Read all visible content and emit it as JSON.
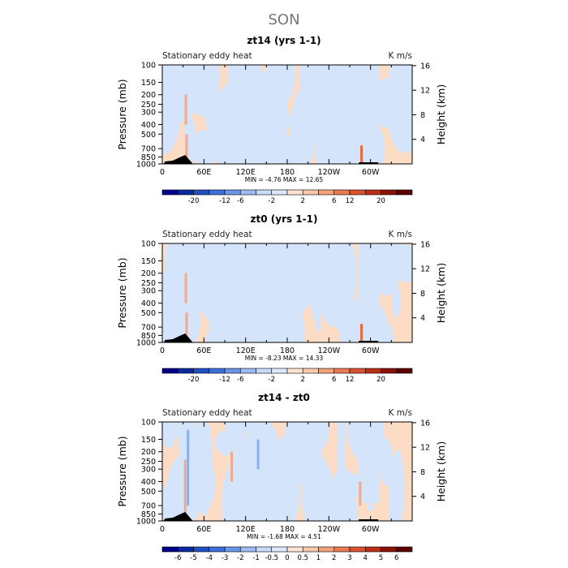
{
  "figure": {
    "title": "SON"
  },
  "colors": {
    "pos_light": "#fddcc6",
    "neg_light": "#d4e5fb",
    "neg_mid": "#8ab0ee",
    "pos_mid": "#f2a88a",
    "pos_strong": "#e56a3f",
    "land": "#000000"
  },
  "chart_data": [
    {
      "type": "heatmap",
      "title": "zt14 (yrs 1-1)",
      "left_label": "Stationary eddy heat",
      "right_label": "K m/s",
      "ylabel": "Pressure (mb)",
      "ylabel_right": "Height (km)",
      "x_ticks": [
        "0",
        "60E",
        "120E",
        "180",
        "120W",
        "60W"
      ],
      "y_ticks": [
        "100",
        "150",
        "200",
        "250",
        "300",
        "400",
        "500",
        "700",
        "850",
        "1000"
      ],
      "y_right_ticks": [
        "4",
        "8",
        "12",
        "16"
      ],
      "stats": {
        "min_label": "MIN =",
        "min": "-4.76",
        "max_label": "MAX =",
        "max": "12.65"
      },
      "colorbar": {
        "ticks": [
          "-20",
          "-12",
          "-6",
          "-2",
          "2",
          "6",
          "12",
          "20"
        ],
        "colors": [
          "#00008b",
          "#0a2a9e",
          "#1f4fc0",
          "#3d71d9",
          "#6a95e8",
          "#9cbbf2",
          "#c8dcfa",
          "#dde9fc",
          "#fde4d3",
          "#fbc8ae",
          "#f4a17e",
          "#ea7a51",
          "#d8532e",
          "#b92f17",
          "#8a1206",
          "#5c0000"
        ]
      },
      "range": {
        "min": -4.76,
        "max": 12.65
      }
    },
    {
      "type": "heatmap",
      "title": "zt0 (yrs 1-1)",
      "left_label": "Stationary eddy heat",
      "right_label": "K m/s",
      "ylabel": "Pressure (mb)",
      "ylabel_right": "Height (km)",
      "x_ticks": [
        "0",
        "60E",
        "120E",
        "180",
        "120W",
        "60W"
      ],
      "y_ticks": [
        "100",
        "150",
        "200",
        "250",
        "300",
        "400",
        "500",
        "700",
        "850",
        "1000"
      ],
      "y_right_ticks": [
        "4",
        "8",
        "12",
        "16"
      ],
      "stats": {
        "min_label": "MIN =",
        "min": "-8.23",
        "max_label": "MAX =",
        "max": "14.33"
      },
      "colorbar": {
        "ticks": [
          "-20",
          "-12",
          "-6",
          "-2",
          "2",
          "6",
          "12",
          "20"
        ],
        "colors": [
          "#00008b",
          "#0a2a9e",
          "#1f4fc0",
          "#3d71d9",
          "#6a95e8",
          "#9cbbf2",
          "#c8dcfa",
          "#dde9fc",
          "#fde4d3",
          "#fbc8ae",
          "#f4a17e",
          "#ea7a51",
          "#d8532e",
          "#b92f17",
          "#8a1206",
          "#5c0000"
        ]
      },
      "range": {
        "min": -8.23,
        "max": 14.33
      }
    },
    {
      "type": "heatmap",
      "title": "zt14 - zt0",
      "left_label": "Stationary eddy heat",
      "right_label": "K m/s",
      "ylabel": "Pressure (mb)",
      "ylabel_right": "Height (km)",
      "x_ticks": [
        "0",
        "60E",
        "120E",
        "180",
        "120W",
        "60W"
      ],
      "y_ticks": [
        "100",
        "150",
        "200",
        "250",
        "300",
        "400",
        "500",
        "700",
        "850",
        "1000"
      ],
      "y_right_ticks": [
        "4",
        "8",
        "12",
        "16"
      ],
      "stats": {
        "min_label": "MIN =",
        "min": "-1.68",
        "max_label": "MAX =",
        "max": "4.51"
      },
      "colorbar": {
        "ticks": [
          "-6",
          "-5",
          "-4",
          "-3",
          "-2",
          "-1",
          "-0.5",
          "0",
          "0.5",
          "1",
          "2",
          "3",
          "4",
          "5",
          "6"
        ],
        "colors": [
          "#00008b",
          "#0a2a9e",
          "#1f4fc0",
          "#3d71d9",
          "#6a95e8",
          "#9cbbf2",
          "#c8dcfa",
          "#dde9fc",
          "#fde4d3",
          "#fbc8ae",
          "#f4a17e",
          "#ea7a51",
          "#d8532e",
          "#b92f17",
          "#8a1206",
          "#5c0000"
        ]
      },
      "range": {
        "min": -1.68,
        "max": 4.51
      }
    }
  ]
}
